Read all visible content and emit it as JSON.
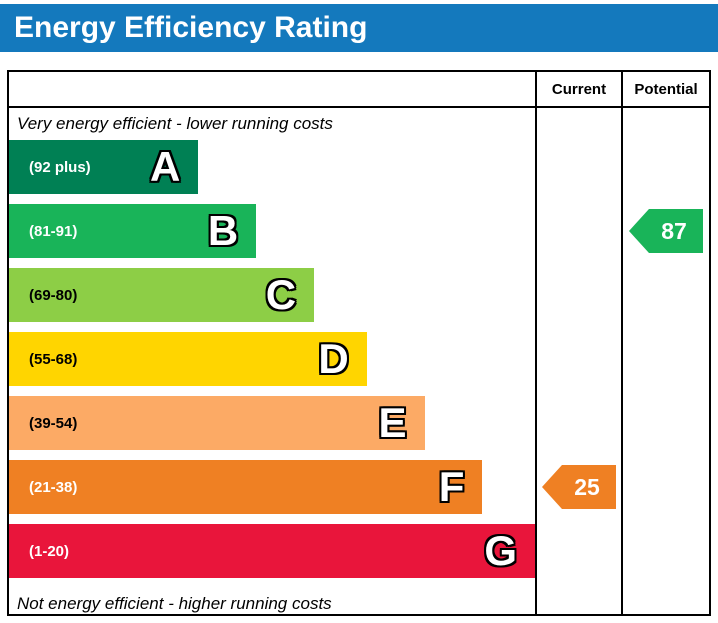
{
  "title": "Energy Efficiency Rating",
  "colors": {
    "title_bg": "#1479bd",
    "title_text": "#ffffff",
    "border": "#000000"
  },
  "table": {
    "current_header": "Current",
    "potential_header": "Potential"
  },
  "captions": {
    "top": "Very energy efficient - lower running costs",
    "bottom": "Not energy efficient - higher running costs"
  },
  "chart_data": {
    "type": "bar",
    "title": "Energy Efficiency Rating",
    "bands": [
      {
        "letter": "A",
        "range": "(92 plus)",
        "score_min": 92,
        "score_max": 100,
        "color": "#008054",
        "width_pct": 36,
        "range_text_color": "#ffffff"
      },
      {
        "letter": "B",
        "range": "(81-91)",
        "score_min": 81,
        "score_max": 91,
        "color": "#19b459",
        "width_pct": 47,
        "range_text_color": "#ffffff"
      },
      {
        "letter": "C",
        "range": "(69-80)",
        "score_min": 69,
        "score_max": 80,
        "color": "#8dce46",
        "width_pct": 58,
        "range_text_color": "#000000"
      },
      {
        "letter": "D",
        "range": "(55-68)",
        "score_min": 55,
        "score_max": 68,
        "color": "#ffd500",
        "width_pct": 68,
        "range_text_color": "#000000"
      },
      {
        "letter": "E",
        "range": "(39-54)",
        "score_min": 39,
        "score_max": 54,
        "color": "#fcaa65",
        "width_pct": 79,
        "range_text_color": "#000000"
      },
      {
        "letter": "F",
        "range": "(21-38)",
        "score_min": 21,
        "score_max": 38,
        "color": "#ef8023",
        "width_pct": 90,
        "range_text_color": "#ffffff"
      },
      {
        "letter": "G",
        "range": "(1-20)",
        "score_min": 1,
        "score_max": 20,
        "color": "#e9153b",
        "width_pct": 100,
        "range_text_color": "#ffffff"
      }
    ],
    "current": {
      "value": 25,
      "band": "F",
      "color": "#ef8023"
    },
    "potential": {
      "value": 87,
      "band": "B",
      "color": "#19b459"
    }
  }
}
